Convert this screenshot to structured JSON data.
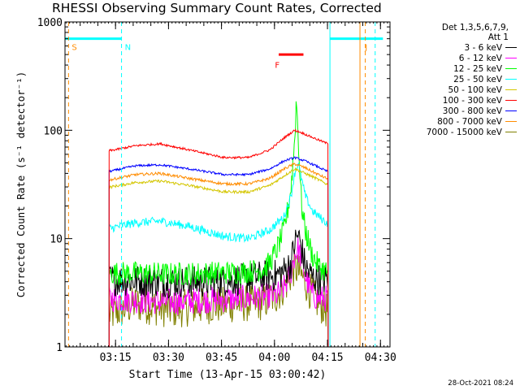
{
  "header": {
    "title": "RHESSI Observing Summary Count Rates, Corrected",
    "timestamp": "28-Oct-2021 08:24"
  },
  "legend": {
    "header_line1": "Det 1,3,5,6,7,9,",
    "header_line2": "Att 1",
    "items": [
      {
        "label": "3 - 6 keV",
        "color": "#000000"
      },
      {
        "label": "6 - 12 keV",
        "color": "#ff00ff"
      },
      {
        "label": "12 - 25 keV",
        "color": "#00ff00"
      },
      {
        "label": "25 - 50 keV",
        "color": "#00ffff"
      },
      {
        "label": "50 - 100 keV",
        "color": "#d4c600"
      },
      {
        "label": "100 - 300 keV",
        "color": "#ff0000"
      },
      {
        "label": "300 - 800 keV",
        "color": "#0000ff"
      },
      {
        "label": "800 - 7000 keV",
        "color": "#ff8c00"
      },
      {
        "label": "7000 - 15000 keV",
        "color": "#808000"
      }
    ]
  },
  "chart_data": {
    "type": "line",
    "title": "RHESSI Observing Summary Count Rates, Corrected",
    "xlabel": "Start Time (13-Apr-15 03:00:42)",
    "ylabel": "Corrected Count Rate (s⁻¹ detector⁻¹)",
    "yscale": "log",
    "ylim": [
      1,
      1000
    ],
    "xlim_minutes": [
      0,
      92
    ],
    "x_ticks": [
      "03:15",
      "03:30",
      "03:45",
      "04:00",
      "04:15",
      "04:30"
    ],
    "x_tick_minutes": [
      14.3,
      29.3,
      44.3,
      59.3,
      74.3,
      89.3
    ],
    "y_ticks": [
      "1",
      "10",
      "100",
      "1000"
    ],
    "y_tick_values": [
      1,
      10,
      100,
      1000
    ],
    "markers": [
      {
        "label": "S",
        "color": "#ff8c00",
        "x_minutes": 1.0,
        "y": 700
      },
      {
        "label": "N",
        "color": "#00ffff",
        "x_minutes": 16.0,
        "y": 700
      },
      {
        "label": "F",
        "color": "#ff0000",
        "x_minutes": 58.5,
        "y": 480
      },
      {
        "label": "J",
        "color": "#ff8c00",
        "x_minutes": 84.0,
        "y": 700
      }
    ],
    "annotations": [
      {
        "type": "night_bar",
        "color": "#00ffff",
        "x_minutes": [
          0,
          16
        ],
        "y": 700
      },
      {
        "type": "night_bar",
        "color": "#00ffff",
        "x_minutes": [
          75,
          90
        ],
        "y": 700
      },
      {
        "type": "flare_bar",
        "color": "#ff0000",
        "x_minutes": [
          60.5,
          67.5
        ],
        "y": 500
      },
      {
        "type": "night_line",
        "color": "#00ffff",
        "x_minutes": 75
      },
      {
        "type": "night_line_dashed",
        "color": "#00ffff",
        "x_minutes": 16
      },
      {
        "type": "night_line_dashed",
        "color": "#00ffff",
        "x_minutes": 87.8
      },
      {
        "type": "saa_line",
        "color": "#ff8c00",
        "x_minutes": 83.5
      },
      {
        "type": "saa_line_dashed",
        "color": "#ff8c00",
        "x_minutes": 1.0
      },
      {
        "type": "saa_line_dashed",
        "color": "#ff8c00",
        "x_minutes": 85.0
      }
    ],
    "data_range_minutes": [
      12.5,
      74.5
    ],
    "series": [
      {
        "name": "3 - 6 keV",
        "color": "#000000",
        "x": [
          13,
          20,
          30,
          40,
          50,
          56,
          60,
          62,
          64,
          65,
          66,
          67,
          68,
          70,
          72,
          74
        ],
        "y": [
          4.2,
          4.1,
          4.0,
          4.0,
          4.2,
          4.5,
          4.6,
          5.0,
          6.0,
          9.0,
          11.0,
          8.0,
          5.5,
          4.4,
          4.2,
          4.2
        ]
      },
      {
        "name": "6 - 12 keV",
        "color": "#ff00ff",
        "x": [
          13,
          20,
          30,
          40,
          50,
          56,
          60,
          62,
          64,
          65,
          66,
          67,
          68,
          70,
          72,
          74
        ],
        "y": [
          2.8,
          2.7,
          2.6,
          2.7,
          2.8,
          2.9,
          3.0,
          3.5,
          5.0,
          7.0,
          8.0,
          6.5,
          4.5,
          3.0,
          2.8,
          2.8
        ]
      },
      {
        "name": "12 - 25 keV",
        "color": "#00ff00",
        "x": [
          13,
          20,
          30,
          40,
          50,
          56,
          58,
          60,
          62,
          63,
          64,
          65,
          65.5,
          66,
          66.5,
          67,
          68,
          70,
          72,
          74
        ],
        "y": [
          4.8,
          4.8,
          4.7,
          4.8,
          4.9,
          5.2,
          6.0,
          8.0,
          12.0,
          18.0,
          30.0,
          80.0,
          200.0,
          90.0,
          40.0,
          20.0,
          12.0,
          7.0,
          5.5,
          5.0
        ]
      },
      {
        "name": "25 - 50 keV",
        "color": "#00ffff",
        "x": [
          13,
          20,
          27,
          35,
          45,
          52,
          58,
          62,
          64,
          65,
          66,
          67,
          68,
          70,
          74
        ],
        "y": [
          12.5,
          14.0,
          14.5,
          13.0,
          10.5,
          10.0,
          12.0,
          16.0,
          25.0,
          40.0,
          50.0,
          35.0,
          25.0,
          18.0,
          14.0
        ]
      },
      {
        "name": "50 - 100 keV",
        "color": "#d4c600",
        "x": [
          13,
          20,
          27,
          35,
          45,
          52,
          58,
          62,
          65,
          68,
          71,
          74
        ],
        "y": [
          30.0,
          33.0,
          34.0,
          31.0,
          27.0,
          27.0,
          31.0,
          38.0,
          44.0,
          40.0,
          36.0,
          32.0
        ]
      },
      {
        "name": "100 - 300 keV",
        "color": "#ff0000",
        "x": [
          13,
          20,
          27,
          35,
          45,
          52,
          58,
          62,
          65,
          67,
          70,
          74
        ],
        "y": [
          65.0,
          72.0,
          75.0,
          66.0,
          56.0,
          56.0,
          66.0,
          85.0,
          100.0,
          95.0,
          86.0,
          76.0
        ]
      },
      {
        "name": "300 - 800 keV",
        "color": "#0000ff",
        "x": [
          13,
          20,
          27,
          35,
          45,
          52,
          58,
          62,
          65,
          68,
          71,
          74
        ],
        "y": [
          42.0,
          47.0,
          48.0,
          44.0,
          39.0,
          39.0,
          44.0,
          52.0,
          56.0,
          52.0,
          47.0,
          42.0
        ]
      },
      {
        "name": "800 - 7000 keV",
        "color": "#ff8c00",
        "x": [
          13,
          20,
          27,
          35,
          45,
          52,
          58,
          62,
          65,
          68,
          71,
          74
        ],
        "y": [
          35.0,
          39.0,
          40.0,
          36.0,
          32.0,
          32.0,
          36.0,
          44.0,
          49.0,
          45.0,
          40.0,
          36.0
        ]
      },
      {
        "name": "7000 - 15000 keV",
        "color": "#808000",
        "x": [
          13,
          20,
          30,
          40,
          50,
          56,
          60,
          63,
          65,
          66,
          67,
          68,
          70,
          72,
          74
        ],
        "y": [
          2.0,
          2.5,
          2.2,
          2.4,
          2.5,
          2.6,
          3.0,
          4.0,
          5.5,
          5.0,
          4.5,
          4.0,
          3.0,
          2.5,
          2.2
        ]
      }
    ]
  }
}
